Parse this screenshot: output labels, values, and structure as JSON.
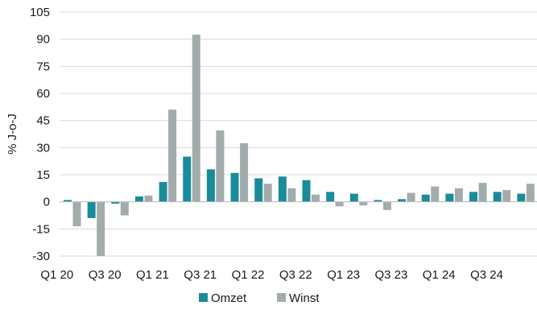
{
  "chart_data": {
    "type": "bar",
    "title": "",
    "xlabel": "",
    "ylabel": "% J-o-J",
    "ylim": [
      -30,
      105
    ],
    "yticks": [
      105,
      90,
      75,
      60,
      45,
      30,
      15,
      0,
      -15,
      -30
    ],
    "grid": true,
    "legend_position": "bottom-center",
    "categories": [
      "Q1 20",
      "Q2 20",
      "Q3 20",
      "Q4 20",
      "Q1 21",
      "Q2 21",
      "Q3 21",
      "Q4 21",
      "Q1 22",
      "Q2 22",
      "Q3 22",
      "Q4 22",
      "Q1 23",
      "Q2 23",
      "Q3 23",
      "Q4 23",
      "Q1 24",
      "Q2 24",
      "Q3 24",
      "Q4 24"
    ],
    "xtick_labels": [
      "Q1 20",
      "Q3 20",
      "Q1 21",
      "Q3 21",
      "Q1 22",
      "Q3 22",
      "Q1 23",
      "Q3 23",
      "Q1 24",
      "Q3 24"
    ],
    "series": [
      {
        "name": "Omzet",
        "color": "#1a8c99",
        "values": [
          1,
          -9,
          -1,
          3,
          11,
          25,
          18,
          16,
          13,
          14,
          12,
          5.5,
          4.5,
          1,
          1.5,
          4,
          4.5,
          5.5,
          5.5,
          4.5
        ]
      },
      {
        "name": "Winst",
        "color": "#a3acad",
        "values": [
          -13.5,
          -30,
          -7.5,
          3.5,
          51,
          92.5,
          39.5,
          32.5,
          10,
          7.5,
          4,
          -2.5,
          -2,
          -4.5,
          5,
          8.5,
          7.5,
          10.5,
          6.5,
          10
        ]
      }
    ]
  }
}
